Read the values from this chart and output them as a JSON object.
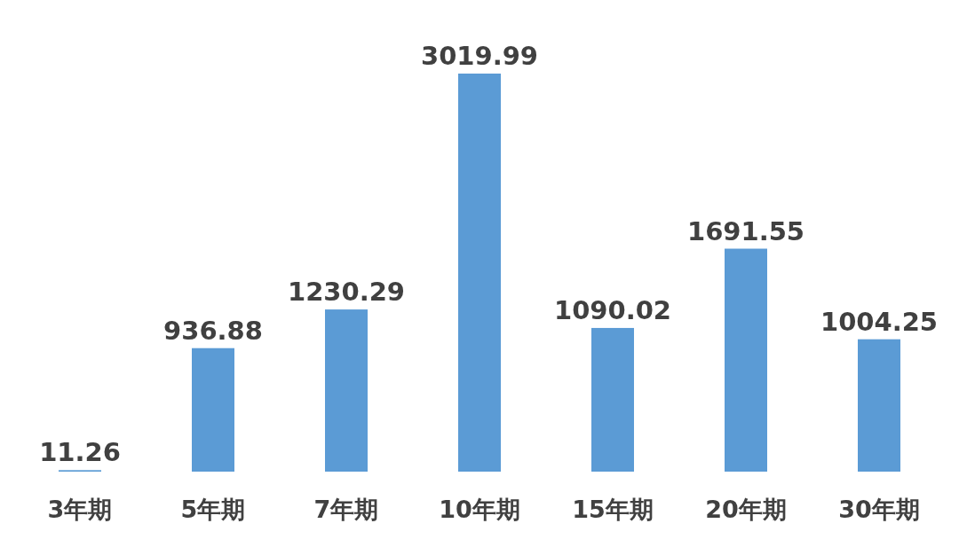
{
  "chart_data": {
    "type": "bar",
    "categories": [
      "3年期",
      "5年期",
      "7年期",
      "10年期",
      "15年期",
      "20年期",
      "30年期"
    ],
    "values": [
      11.26,
      936.88,
      1230.29,
      3019.99,
      1090.02,
      1691.55,
      1004.25
    ],
    "color": "#5b9bd5",
    "data_labels": true
  }
}
